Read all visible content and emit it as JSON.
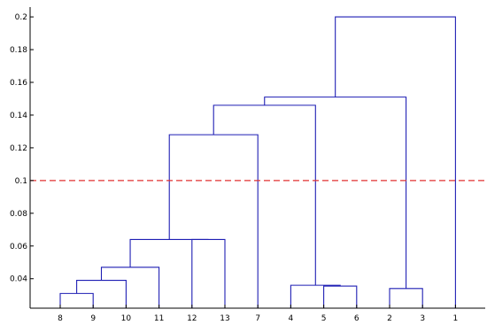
{
  "chart_data": {
    "type": "dendrogram",
    "title": "",
    "xlabel": "",
    "ylabel": "",
    "leaf_order": [
      "8",
      "9",
      "10",
      "11",
      "12",
      "13",
      "7",
      "4",
      "5",
      "6",
      "2",
      "3",
      "1"
    ],
    "ylim": [
      0.022,
      0.206
    ],
    "yticks": [
      0.04,
      0.06,
      0.08,
      0.1,
      0.12,
      0.14,
      0.16,
      0.18,
      0.2
    ],
    "ytick_labels": [
      "0.04",
      "0.06",
      "0.08",
      "0.1",
      "0.12",
      "0.14",
      "0.16",
      "0.18",
      "0.2"
    ],
    "merges": [
      {
        "left": "8",
        "right": "9",
        "height": 0.031
      },
      {
        "left": "8-9",
        "right": "10",
        "height": 0.039
      },
      {
        "left": "8-10",
        "right": "11",
        "height": 0.047
      },
      {
        "left": "12",
        "right": "13",
        "height": 0.064
      },
      {
        "left": "8-11",
        "right": "12-13",
        "height": 0.064
      },
      {
        "left": "5",
        "right": "6",
        "height": 0.0355
      },
      {
        "left": "4",
        "right": "5-6",
        "height": 0.036
      },
      {
        "left": "2",
        "right": "3",
        "height": 0.034
      },
      {
        "left": "8-13",
        "right": "7",
        "height": 0.128
      },
      {
        "left": "8-13,7",
        "right": "4-6",
        "height": 0.146
      },
      {
        "left": "8-13,7,4-6",
        "right": "2-3",
        "height": 0.151
      },
      {
        "left": "all",
        "right": "1",
        "height": 0.2
      }
    ],
    "threshold": 0.1,
    "threshold_color": "#e03030",
    "link_color": "#1f1fb4"
  }
}
